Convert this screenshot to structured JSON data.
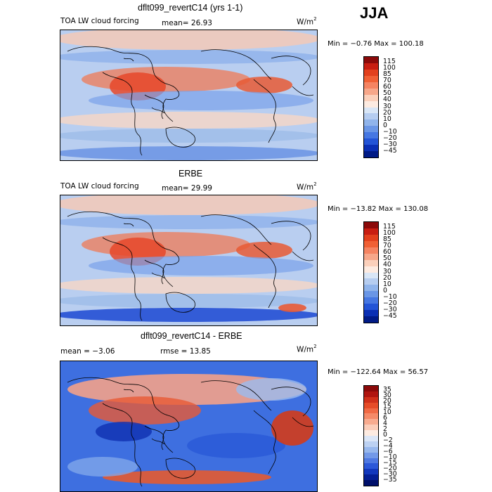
{
  "season": "JJA",
  "panels": [
    {
      "title": "dflt099_revertC14 (yrs 1-1)",
      "left_label": "TOA LW cloud forcing",
      "stat_label": "mean=  26.93",
      "units_base": "W/m",
      "units_exp": "2",
      "minmax": "Min =  −0.76 Max = 100.18",
      "colorbar_levels": [
        "115",
        "100",
        "85",
        "70",
        "60",
        "50",
        "40",
        "30",
        "20",
        "10",
        "0",
        "−10",
        "−20",
        "−30",
        "−45"
      ],
      "colorbar_colors": [
        "#8b0a0a",
        "#c81e12",
        "#e2401d",
        "#f06035",
        "#f58462",
        "#f7a78a",
        "#fbd0bb",
        "#fdebe1",
        "#d9e6f6",
        "#b6cdf0",
        "#90b4eb",
        "#6a96e6",
        "#4677e2",
        "#2354d6",
        "#0a2fb4",
        "#001a86"
      ],
      "map_style": "model"
    },
    {
      "title": "ERBE",
      "left_label": "TOA LW cloud forcing",
      "stat_label": "mean=  29.99",
      "units_base": "W/m",
      "units_exp": "2",
      "minmax": "Min = −13.82 Max = 130.08",
      "colorbar_levels": [
        "115",
        "100",
        "85",
        "70",
        "60",
        "50",
        "40",
        "30",
        "20",
        "10",
        "0",
        "−10",
        "−20",
        "−30",
        "−45"
      ],
      "colorbar_colors": [
        "#8b0a0a",
        "#c81e12",
        "#e2401d",
        "#f06035",
        "#f58462",
        "#f7a78a",
        "#fbd0bb",
        "#fdebe1",
        "#d9e6f6",
        "#b6cdf0",
        "#90b4eb",
        "#6a96e6",
        "#4677e2",
        "#2354d6",
        "#0a2fb4",
        "#001a86"
      ],
      "map_style": "obs"
    },
    {
      "title": "dflt099_revertC14 - ERBE",
      "left_label": "mean =  −3.06",
      "stat_label": "rmse =  13.85",
      "units_base": "W/m",
      "units_exp": "2",
      "minmax": "Min = −122.64 Max =  56.57",
      "colorbar_levels": [
        "35",
        "30",
        "20",
        "15",
        "10",
        "6",
        "4",
        "2",
        "0",
        "−2",
        "−4",
        "−6",
        "−10",
        "−15",
        "−20",
        "−30",
        "−35"
      ],
      "colorbar_colors": [
        "#8b0a0a",
        "#b01510",
        "#d0301a",
        "#e64c28",
        "#f06a45",
        "#f58a68",
        "#f8ab8f",
        "#fbcdb9",
        "#fdebe1",
        "#dbe6f7",
        "#bcd1f2",
        "#98b8ed",
        "#7399e8",
        "#4f79e2",
        "#2c58d8",
        "#1238bd",
        "#041f94",
        "#00106a"
      ],
      "map_style": "diff"
    }
  ]
}
